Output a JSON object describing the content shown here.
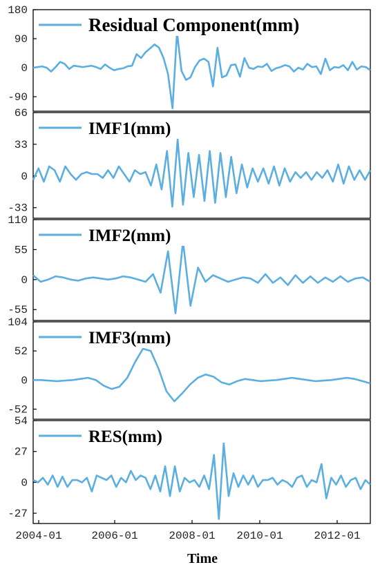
{
  "chart_data": {
    "type": "line",
    "shared_x_axis": {
      "label": "Time",
      "ticks": [
        "2004-01",
        "2006-01",
        "2008-01",
        "2010-01",
        "2012-01"
      ],
      "range": [
        "2004-01",
        "2012-11"
      ]
    },
    "line_color": "#5aaee0",
    "panels": [
      {
        "legend": "Residual Component(mm)",
        "ylim": [
          -135,
          180
        ],
        "yticks": [
          180,
          90,
          0,
          -90
        ],
        "values": [
          0,
          2,
          4,
          0,
          -12,
          2,
          18,
          12,
          -4,
          6,
          4,
          2,
          4,
          6,
          2,
          -4,
          10,
          0,
          -8,
          -4,
          -2,
          4,
          6,
          42,
          30,
          48,
          60,
          72,
          62,
          30,
          -20,
          -126,
          110,
          -10,
          -38,
          -30,
          2,
          22,
          28,
          18,
          -58,
          62,
          -30,
          -24,
          8,
          10,
          -28,
          30,
          0,
          -4,
          4,
          2,
          12,
          -10,
          -2,
          2,
          8,
          4,
          -12,
          0,
          -6,
          12,
          2,
          4,
          -20,
          28,
          -8,
          2,
          0,
          8,
          -8,
          18,
          -6,
          4,
          2,
          -8
        ]
      },
      {
        "legend": "IMF1(mm)",
        "ylim": [
          -44,
          66
        ],
        "yticks": [
          66,
          33,
          0,
          -33
        ],
        "values": [
          -4,
          8,
          -6,
          10,
          6,
          -6,
          10,
          2,
          -4,
          2,
          4,
          2,
          2,
          -2,
          6,
          -2,
          10,
          2,
          -6,
          6,
          2,
          4,
          -10,
          12,
          -14,
          26,
          -32,
          38,
          -30,
          24,
          -22,
          22,
          -26,
          26,
          -28,
          24,
          -22,
          20,
          -18,
          12,
          -12,
          8,
          -6,
          8,
          -8,
          10,
          -10,
          8,
          -6,
          4,
          -2,
          4,
          -4,
          4,
          -2,
          6,
          -6,
          12,
          -8,
          10,
          -4,
          6,
          -4,
          6
        ]
      },
      {
        "legend": "IMF2(mm)",
        "ylim": [
          -75,
          110
        ],
        "yticks": [
          110,
          55,
          0,
          -55
        ],
        "values": [
          8,
          -4,
          0,
          6,
          4,
          0,
          -2,
          2,
          4,
          2,
          0,
          2,
          6,
          4,
          0,
          -4,
          10,
          -24,
          52,
          -62,
          70,
          -48,
          22,
          -4,
          8,
          2,
          -4,
          0,
          4,
          2,
          -6,
          10,
          -6,
          4,
          -10,
          8,
          -6,
          6,
          -6,
          4,
          -4,
          6,
          -4,
          2,
          4,
          -4
        ]
      },
      {
        "legend": "IMF3(mm)",
        "ylim": [
          -70,
          104
        ],
        "yticks": [
          104,
          52,
          0,
          -52
        ],
        "values": [
          0,
          0,
          -1,
          -2,
          -1,
          0,
          2,
          4,
          0,
          -10,
          -16,
          -12,
          4,
          32,
          56,
          52,
          20,
          -20,
          -38,
          -24,
          -8,
          4,
          10,
          6,
          -4,
          -8,
          -2,
          2,
          0,
          -2,
          -1,
          0,
          2,
          4,
          2,
          0,
          -2,
          -1,
          0,
          2,
          4,
          2,
          -2,
          -6
        ]
      },
      {
        "legend": "RES(mm)",
        "ylim": [
          -36,
          54
        ],
        "yticks": [
          54,
          27,
          0,
          -27
        ],
        "values": [
          2,
          0,
          4,
          -2,
          6,
          -4,
          5,
          -4,
          2,
          2,
          0,
          4,
          -8,
          6,
          4,
          2,
          6,
          -4,
          4,
          0,
          10,
          2,
          6,
          4,
          -6,
          6,
          -8,
          14,
          -12,
          14,
          -8,
          4,
          0,
          2,
          -4,
          6,
          -6,
          24,
          -32,
          34,
          -12,
          8,
          -4,
          6,
          -2,
          6,
          -4,
          2,
          2,
          4,
          -2,
          2,
          0,
          -4,
          4,
          6,
          -4,
          2,
          0,
          16,
          -14,
          4,
          -2,
          6,
          -4,
          2,
          4,
          -6,
          2,
          -2
        ]
      }
    ]
  }
}
